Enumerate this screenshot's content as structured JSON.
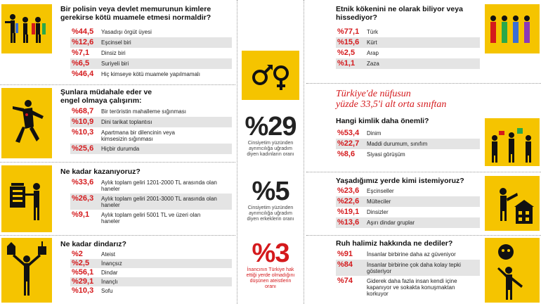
{
  "q1": {
    "title": "Bir polisin veya devlet memurunun kimlere gerekirse kötü muamele etmesi normaldir?",
    "icon": "police-abuse-icon",
    "items": [
      {
        "pct": "44,5",
        "label": "Yasadışı örgüt üyesi"
      },
      {
        "pct": "12,6",
        "label": "Eşcinsel biri"
      },
      {
        "pct": "7,1",
        "label": "Dinsiz biri"
      },
      {
        "pct": "6,5",
        "label": "Suriyeli biri"
      },
      {
        "pct": "46,4",
        "label": "Hiç kimseye kötü muamele yapılmamalı"
      }
    ]
  },
  "q2": {
    "title": "Şunlara müdahale eder ve engel olmaya çalışırım:",
    "icon": "running-person-icon",
    "items": [
      {
        "pct": "68,7",
        "label": "Bir teröristin mahalleme sığınması"
      },
      {
        "pct": "10,9",
        "label": "Dini tarikat toplantısı"
      },
      {
        "pct": "10,3",
        "label": "Apartmana bir dilencinin veya kimsesizin sığınması"
      },
      {
        "pct": "25,6",
        "label": "Hiçbir durumda"
      }
    ]
  },
  "q3": {
    "title": "Ne kadar kazanıyoruz?",
    "icon": "money-stack-icon",
    "items": [
      {
        "pct": "33,6",
        "label": "Aylık toplam geliri 1201-2000 TL arasında olan haneler"
      },
      {
        "pct": "26,3",
        "label": "Aylık toplam geliri 2001-3000 TL arasında olan haneler"
      },
      {
        "pct": "9,1",
        "label": "Aylık toplam geliri 5001 TL ve üzeri olan haneler"
      }
    ]
  },
  "q4": {
    "title": "Ne kadar dindarız?",
    "icon": "religion-icon",
    "items": [
      {
        "pct": "2",
        "label": "Ateist"
      },
      {
        "pct": "2,5",
        "label": "İnançsız"
      },
      {
        "pct": "56,1",
        "label": "Dindar"
      },
      {
        "pct": "29,1",
        "label": "İnançlı"
      },
      {
        "pct": "10,3",
        "label": "Sofu"
      }
    ]
  },
  "center": {
    "icon": "gender-symbols-icon",
    "stats": [
      {
        "num": "%29",
        "caption": "Cinsiyetim yüzünden ayrımcılığa uğradım diyen kadınların oranı"
      },
      {
        "num": "%5",
        "caption": "Cinsiyetim yüzünden ayrımcılığa uğradım diyen erkeklerin oranı"
      },
      {
        "num": "%3",
        "caption": "İnancının Türkiye hak ettiği yerde olmadığını düşünen ateistlerin oranı"
      }
    ]
  },
  "q5": {
    "title": "Etnik kökenini ne olarak biliyor veya hissediyor?",
    "icon": "people-group-icon",
    "items": [
      {
        "pct": "77,1",
        "label": "Türk"
      },
      {
        "pct": "15,6",
        "label": "Kürt"
      },
      {
        "pct": "2,5",
        "label": "Arap"
      },
      {
        "pct": "1,1",
        "label": "Zaza"
      }
    ]
  },
  "headline": {
    "line1": "Türkiye'de nüfusun",
    "line2": "yüzde 33,5'i alt orta sınıftan"
  },
  "q6": {
    "title": "Hangi kimlik daha önemli?",
    "icon": "identity-icon",
    "items": [
      {
        "pct": "53,4",
        "label": "Dinim"
      },
      {
        "pct": "22,7",
        "label": "Maddi durumum, sınıfım"
      },
      {
        "pct": "8,6",
        "label": "Siyasi görüşüm"
      }
    ]
  },
  "q7": {
    "title": "Yaşadığımız yerde kimi istemiyoruz?",
    "icon": "neighbor-icon",
    "items": [
      {
        "pct": "23,6",
        "label": "Eşcinseller"
      },
      {
        "pct": "22,6",
        "label": "Mülteciler"
      },
      {
        "pct": "19,1",
        "label": "Dinsizler"
      },
      {
        "pct": "13,6",
        "label": "Aşırı dindar gruplar"
      }
    ]
  },
  "q8": {
    "title": "Ruh halimiz hakkında ne dediler?",
    "icon": "mood-icon",
    "items": [
      {
        "pct": "91",
        "label": "İnsanlar birbirine daha az güveniyor"
      },
      {
        "pct": "84",
        "label": "İnsanlar birbirine çok daha kolay tepki gösteriyor"
      },
      {
        "pct": "74",
        "label": "Giderek daha fazla insan kendi içine kapanıyor ve sokakta konuşmaktan korkuyor"
      }
    ]
  },
  "percent_sign": "%",
  "colors": {
    "accent": "#d4191c",
    "icon_bg": "#f5c400",
    "shade": "#e4e4e4"
  }
}
